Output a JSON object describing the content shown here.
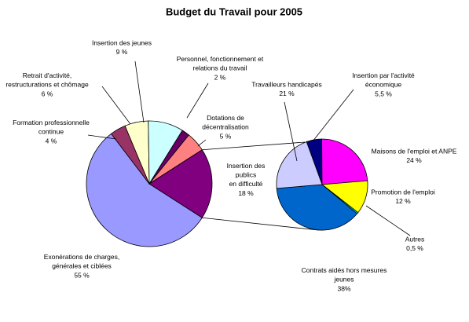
{
  "chart_data": [
    {
      "type": "pie",
      "title": "Budget du Travail pour 2005",
      "categories": [
        "Exonérations de charges,\ngénérales et ciblées",
        "Formation professionnelle\ncontinue",
        "Retrait d'activité,\nrestructurations et chômage",
        "Insertion des jeunes",
        "Personnel, fonctionnement et\nrelations du travail",
        "Dotations de\ndécentralisation",
        "Insertion des\npublics\nen difficulté"
      ],
      "values": [
        55,
        4,
        6,
        9,
        2,
        5,
        18
      ],
      "value_labels": [
        "55 %",
        "4 %",
        "6 %",
        "9 %",
        "2 %",
        "5 %",
        "18 %"
      ],
      "colors": [
        "#9999ff",
        "#993366",
        "#ffffcc",
        "#ccffff",
        "#660066",
        "#ff8080",
        "#800080"
      ]
    },
    {
      "type": "pie",
      "categories": [
        "Insertion par l'activité\néconomique",
        "Maisons de l'emploi et ANPE",
        "Promotion de l'emploi",
        "Autres",
        "Contrats aidés hors mesures\njeunes",
        "Travailleurs handicapés"
      ],
      "values": [
        5.5,
        24,
        12,
        0.5,
        38,
        21
      ],
      "value_labels": [
        "5,5 %",
        "24 %",
        "12 %",
        "0,5 %",
        "38%",
        "21 %"
      ],
      "colors": [
        "#000080",
        "#ff00ff",
        "#ffff00",
        "#00ffff",
        "#0066cc",
        "#ccccff"
      ]
    }
  ]
}
